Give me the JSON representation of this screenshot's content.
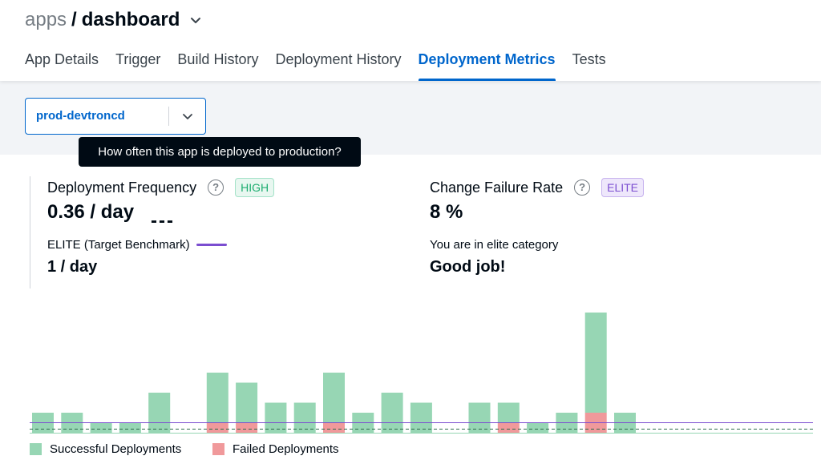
{
  "header": {
    "breadcrumb_root": "apps",
    "breadcrumb_sep": "/",
    "breadcrumb_page": "dashboard",
    "tabs": [
      {
        "label": "App Details"
      },
      {
        "label": "Trigger"
      },
      {
        "label": "Build History"
      },
      {
        "label": "Deployment History"
      },
      {
        "label": "Deployment Metrics",
        "active": true
      },
      {
        "label": "Tests"
      }
    ]
  },
  "filter": {
    "environment": "prod-devtroncd"
  },
  "tooltip": {
    "text": "How often this app is deployed to production?"
  },
  "metrics": {
    "frequency": {
      "title": "Deployment Frequency",
      "help_icon": "question-circle-icon",
      "badge": "HIGH",
      "value": "0.36 / day",
      "dashes": "---",
      "benchmark_label": "ELITE (Target Benchmark)",
      "benchmark_value": "1 / day"
    },
    "failure_rate": {
      "title": "Change Failure Rate",
      "help_icon": "question-circle-icon",
      "badge": "ELITE",
      "value": "8 %",
      "category_label": "You are in elite category",
      "category_value": "Good job!"
    }
  },
  "colors": {
    "accent": "#0066cc",
    "success": "#97d6b4",
    "failed": "#f0999b",
    "elite_line": "#7b4dd0",
    "high_badge": "#1dad70"
  },
  "chart_data": {
    "type": "bar",
    "stacked": true,
    "values_note": "deployments per day",
    "series": [
      {
        "name": "Successful Deployments",
        "values": [
          2,
          2,
          1,
          1,
          4,
          5,
          4,
          3,
          3,
          5,
          2,
          4,
          3,
          0,
          3,
          2,
          1,
          2,
          10,
          2
        ]
      },
      {
        "name": "Failed Deployments",
        "values": [
          0,
          0,
          0,
          0,
          0,
          1,
          1,
          0,
          0,
          1,
          0,
          0,
          0,
          0,
          0,
          1,
          0,
          0,
          2,
          0
        ]
      }
    ],
    "slots": [
      0,
      1,
      2,
      3,
      4,
      6,
      7,
      8,
      9,
      10,
      11,
      12,
      13,
      14,
      15,
      16,
      17,
      18,
      19,
      20
    ],
    "reference_lines": [
      {
        "label": "elite",
        "value": 1,
        "style": "solid"
      },
      {
        "label": "current",
        "value": 0.36,
        "style": "dashed"
      }
    ],
    "legend": [
      "Successful Deployments",
      "Failed Deployments"
    ],
    "legend_position": "bottom-left",
    "grid": false
  }
}
